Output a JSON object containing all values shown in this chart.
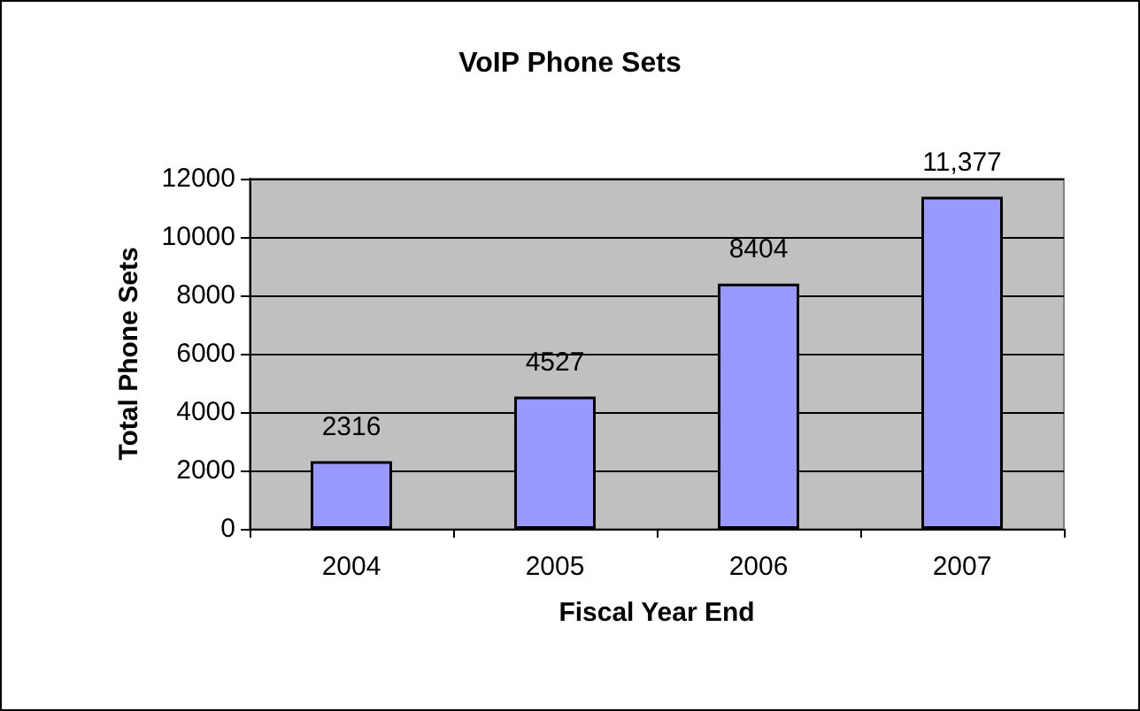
{
  "chart_data": {
    "type": "bar",
    "title": "VoIP Phone Sets",
    "xlabel": "Fiscal Year End",
    "ylabel": "Total Phone Sets",
    "categories": [
      "2004",
      "2005",
      "2006",
      "2007"
    ],
    "values": [
      2316,
      4527,
      8404,
      11377
    ],
    "color": "#9999ff",
    "value_labels": [
      "2316",
      "4527",
      "8404",
      "11,377"
    ],
    "ylim": [
      0,
      12000
    ],
    "yticks": [
      0,
      2000,
      4000,
      6000,
      8000,
      10000,
      12000
    ],
    "grid": "y"
  }
}
